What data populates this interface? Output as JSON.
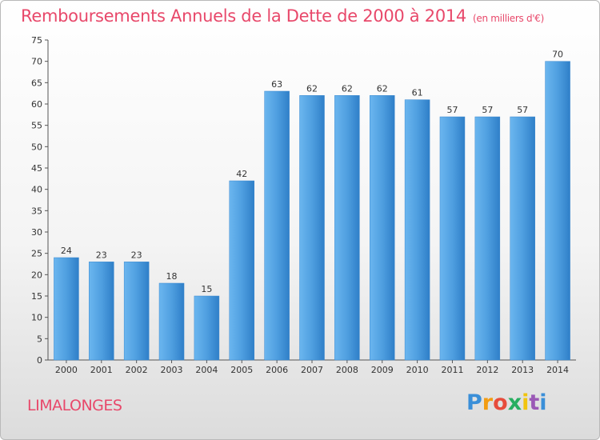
{
  "header": {
    "title": "Remboursements Annuels de la Dette de 2000 à 2014",
    "subtitle": "(en milliers d'€)"
  },
  "footer": {
    "commune": "LIMALONGES",
    "logo_text": "Proxiti"
  },
  "chart_data": {
    "type": "bar",
    "title": "Remboursements Annuels de la Dette de 2000 à 2014",
    "subtitle": "(en milliers d'€)",
    "xlabel": "",
    "ylabel": "",
    "categories": [
      "2000",
      "2001",
      "2002",
      "2003",
      "2004",
      "2005",
      "2006",
      "2007",
      "2008",
      "2009",
      "2010",
      "2011",
      "2012",
      "2013",
      "2014"
    ],
    "values": [
      24,
      23,
      23,
      18,
      15,
      42,
      63,
      62,
      62,
      62,
      61,
      57,
      57,
      57,
      70
    ],
    "ylim": [
      0,
      75
    ],
    "yticks": [
      0,
      5,
      10,
      15,
      20,
      25,
      30,
      35,
      40,
      45,
      50,
      55,
      60,
      65,
      70,
      75
    ],
    "grid": false,
    "bar_color": "#4f9fe0",
    "bar_color_dark": "#2a78bf"
  }
}
